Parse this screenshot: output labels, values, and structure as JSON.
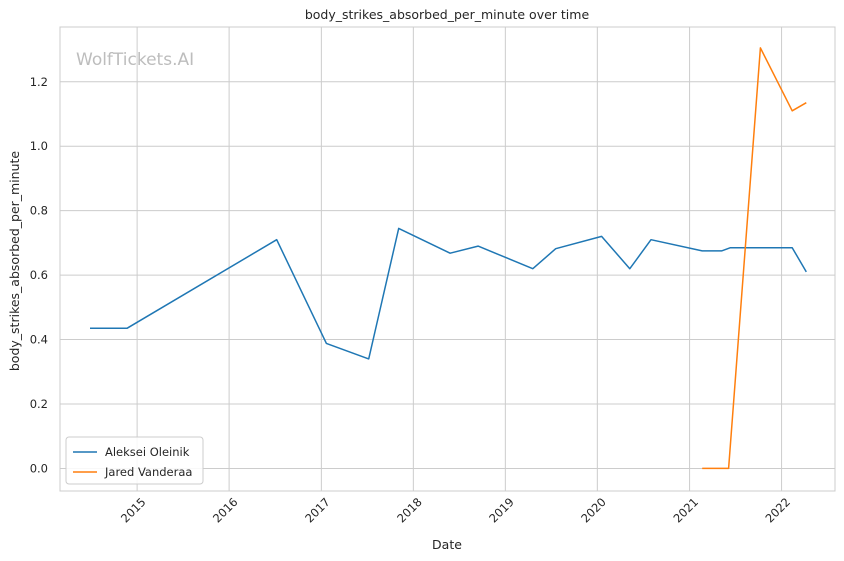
{
  "chart_data": {
    "type": "line",
    "title": "body_strikes_absorbed_per_minute over time",
    "xlabel": "Date",
    "ylabel": "body_strikes_absorbed_per_minute",
    "watermark": "WolfTickets.AI",
    "x_ticks": [
      "2015",
      "2016",
      "2017",
      "2018",
      "2019",
      "2020",
      "2021",
      "2022"
    ],
    "y_ticks": [
      "0.0",
      "0.2",
      "0.4",
      "0.6",
      "0.8",
      "1.0",
      "1.2"
    ],
    "xlim": [
      "2014-03-01",
      "2022-08-01"
    ],
    "ylim": [
      -0.07,
      1.37
    ],
    "grid": true,
    "legend_position": "bottom-left",
    "series": [
      {
        "name": "Aleksei Oleinik",
        "color": "#1f77b4",
        "points": [
          [
            "2014-06-28",
            0.435
          ],
          [
            "2014-11-22",
            0.435
          ],
          [
            "2016-07-08",
            0.71
          ],
          [
            "2017-01-21",
            0.388
          ],
          [
            "2017-07-08",
            0.34
          ],
          [
            "2017-11-04",
            0.745
          ],
          [
            "2018-05-27",
            0.668
          ],
          [
            "2018-09-15",
            0.69
          ],
          [
            "2019-04-20",
            0.62
          ],
          [
            "2019-07-20",
            0.682
          ],
          [
            "2020-01-18",
            0.72
          ],
          [
            "2020-05-09",
            0.62
          ],
          [
            "2020-08-01",
            0.71
          ],
          [
            "2021-02-20",
            0.675
          ],
          [
            "2021-05-08",
            0.675
          ],
          [
            "2021-06-12",
            0.685
          ],
          [
            "2022-02-12",
            0.685
          ],
          [
            "2022-04-09",
            0.61
          ]
        ]
      },
      {
        "name": "Jared Vanderaa",
        "color": "#ff7f0e",
        "points": [
          [
            "2021-02-20",
            0.0
          ],
          [
            "2021-06-05",
            0.0
          ],
          [
            "2021-10-09",
            1.305
          ],
          [
            "2022-02-12",
            1.11
          ],
          [
            "2022-04-09",
            1.135
          ]
        ]
      }
    ]
  }
}
